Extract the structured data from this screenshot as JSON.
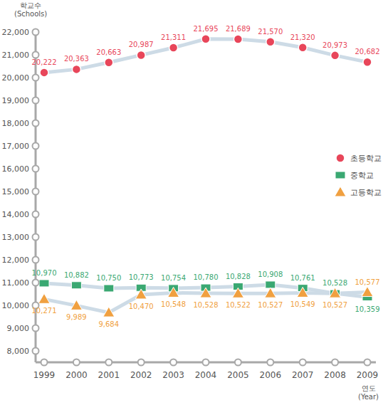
{
  "chart_data": {
    "type": "line",
    "y_label": "학교수\n(Schools)",
    "x_label": "연도\n(Year)",
    "categories": [
      "1999",
      "2000",
      "2001",
      "2002",
      "2003",
      "2004",
      "2005",
      "2006",
      "2007",
      "2008",
      "2009"
    ],
    "series": [
      {
        "name": "초등학교",
        "color": "#e8465a",
        "marker": "circle",
        "values": [
          20222,
          20363,
          20663,
          20987,
          21311,
          21695,
          21689,
          21570,
          21320,
          20973,
          20682
        ],
        "value_labels": [
          "20,222",
          "20,363",
          "20,663",
          "20,987",
          "21,311",
          "21,695",
          "21,689",
          "21,570",
          "21,320",
          "20,973",
          "20,682"
        ]
      },
      {
        "name": "중학교",
        "color": "#3aa872",
        "marker": "square",
        "values": [
          10970,
          10882,
          10750,
          10773,
          10754,
          10780,
          10828,
          10908,
          10761,
          10528,
          10359
        ],
        "value_labels": [
          "10,970",
          "10,882",
          "10,750",
          "10,773",
          "10,754",
          "10,780",
          "10,828",
          "10,908",
          "10,761",
          "10,528",
          "10,359"
        ]
      },
      {
        "name": "고등학교",
        "color": "#f0a040",
        "marker": "triangle",
        "values": [
          10271,
          9989,
          9684,
          10470,
          10548,
          10528,
          10522,
          10527,
          10549,
          10527,
          10577
        ],
        "value_labels": [
          "10,271",
          "9,989",
          "9,684",
          "10,470",
          "10,548",
          "10,528",
          "10,522",
          "10,527",
          "10,549",
          "10,527",
          "10,577"
        ]
      }
    ],
    "ylim": [
      7500,
      22000
    ],
    "yticks": [
      {
        "value": 8000,
        "label": "8,000"
      },
      {
        "value": 9000,
        "label": "9,000"
      },
      {
        "value": 10000,
        "label": "10,000"
      },
      {
        "value": 11000,
        "label": "11,000"
      },
      {
        "value": 12000,
        "label": "12,000"
      },
      {
        "value": 13000,
        "label": "13,000"
      },
      {
        "value": 14000,
        "label": "14,000"
      },
      {
        "value": 15000,
        "label": "15,000"
      },
      {
        "value": 16000,
        "label": "16,000"
      },
      {
        "value": 17000,
        "label": "17,000"
      },
      {
        "value": 18000,
        "label": "18,000"
      },
      {
        "value": 19000,
        "label": "19,000"
      },
      {
        "value": 20000,
        "label": "20,000"
      },
      {
        "value": 21000,
        "label": "21,000"
      },
      {
        "value": 22000,
        "label": "22,000"
      }
    ],
    "grid": false,
    "legend": "right",
    "data_labels": true
  }
}
